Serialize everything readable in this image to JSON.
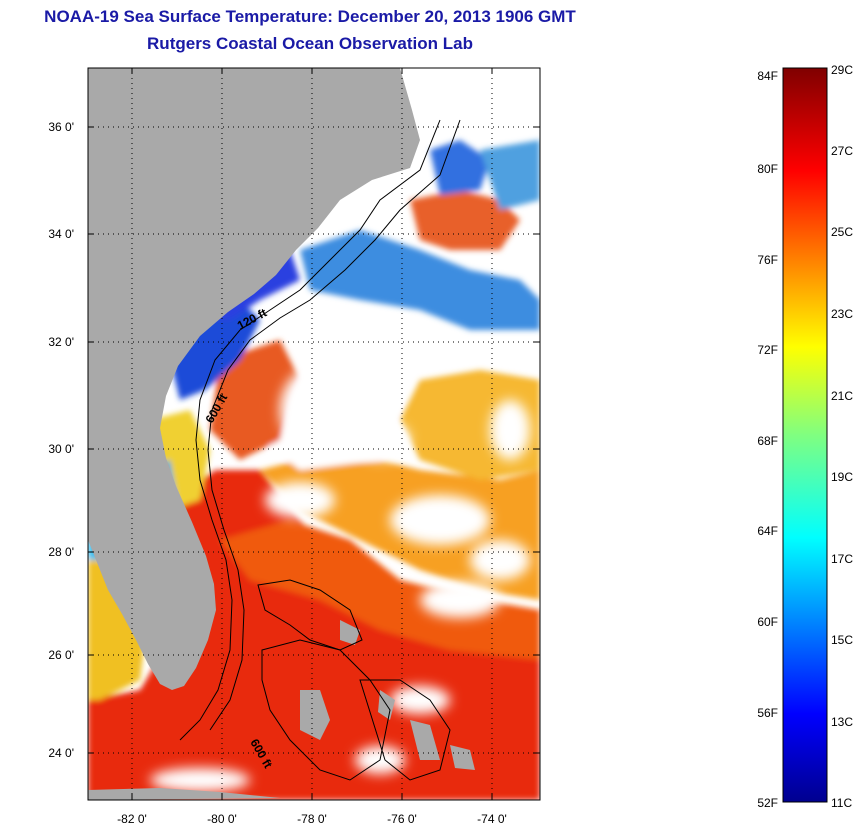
{
  "title": {
    "line1": "NOAA-19 Sea Surface Temperature:  December 20, 2013 1906 GMT",
    "line2": "Rutgers Coastal Ocean Observation Lab"
  },
  "map": {
    "lat_labels": [
      "36 0'",
      "34 0'",
      "32 0'",
      "30 0'",
      "28 0'",
      "26 0'",
      "24 0'"
    ],
    "lon_labels": [
      "-82 0'",
      "-80 0'",
      "-78 0'",
      "-76 0'",
      "-74 0'"
    ],
    "contour_labels": [
      "120 ft",
      "600 ft",
      "600 ft"
    ],
    "land_color": "#a9a9a9",
    "no_data_color": "#ffffff"
  },
  "colorbar": {
    "f_labels": [
      "84F",
      "80F",
      "76F",
      "72F",
      "68F",
      "64F",
      "60F",
      "56F",
      "52F"
    ],
    "c_labels": [
      "29C",
      "27C",
      "25C",
      "23C",
      "21C",
      "19C",
      "17C",
      "15C",
      "13C",
      "11C"
    ],
    "colormap": "jet"
  }
}
